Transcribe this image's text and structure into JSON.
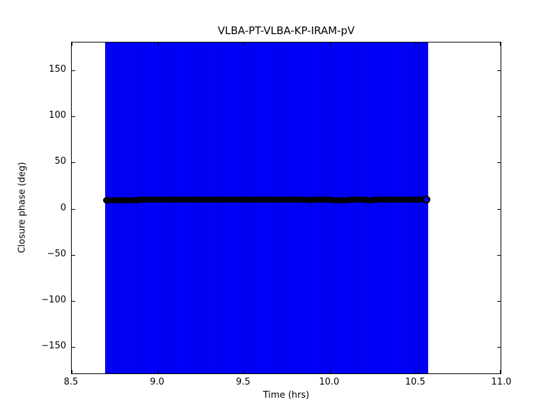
{
  "chart_data": {
    "type": "scatter",
    "title": "VLBA-PT-VLBA-KP-IRAM-pV",
    "xlabel": "Time (hrs)",
    "ylabel": "Closure phase (deg)",
    "xlim": [
      8.5,
      11.0
    ],
    "ylim": [
      -180,
      180
    ],
    "xticks": [
      8.5,
      9.0,
      9.5,
      10.0,
      10.5,
      11.0
    ],
    "xtick_labels": [
      "8.5",
      "9.0",
      "9.5",
      "10.0",
      "10.5",
      "11.0"
    ],
    "yticks": [
      -150,
      -100,
      -50,
      0,
      50,
      100,
      150
    ],
    "ytick_labels": [
      "−150",
      "−100",
      "−50",
      "0",
      "50",
      "100",
      "150"
    ],
    "grid": false,
    "legend": false,
    "colors": {
      "marker": "#000000",
      "errorbar": "#0000ff",
      "axes": "#000000",
      "background": "#ffffff"
    },
    "error_band": {
      "x_start": 8.695,
      "x_end": 10.572,
      "y_min": -180,
      "y_max": 180,
      "description": "vertical error bars at every sample spanning the full y-range"
    },
    "series": [
      {
        "name": "closure phase",
        "marker": "circle",
        "x": [
          8.7,
          8.72,
          8.74,
          8.76,
          8.78,
          8.8,
          8.82,
          8.84,
          8.86,
          8.88,
          8.9,
          8.92,
          8.94,
          8.96,
          8.98,
          9.0,
          9.02,
          9.04,
          9.06,
          9.08,
          9.1,
          9.12,
          9.14,
          9.16,
          9.18,
          9.2,
          9.22,
          9.24,
          9.26,
          9.28,
          9.3,
          9.32,
          9.34,
          9.36,
          9.38,
          9.4,
          9.42,
          9.44,
          9.46,
          9.48,
          9.5,
          9.52,
          9.54,
          9.56,
          9.58,
          9.6,
          9.62,
          9.64,
          9.66,
          9.68,
          9.7,
          9.72,
          9.74,
          9.76,
          9.78,
          9.8,
          9.82,
          9.84,
          9.86,
          9.88,
          9.9,
          9.92,
          9.94,
          9.96,
          9.98,
          10.0,
          10.02,
          10.04,
          10.06,
          10.08,
          10.1,
          10.12,
          10.14,
          10.16,
          10.18,
          10.2,
          10.22,
          10.24,
          10.26,
          10.28,
          10.3,
          10.32,
          10.34,
          10.36,
          10.38,
          10.4,
          10.42,
          10.44,
          10.46,
          10.48,
          10.5,
          10.52,
          10.54,
          10.56
        ],
        "y": [
          8.9,
          9.0,
          9.0,
          9.1,
          9.2,
          9.2,
          9.3,
          9.3,
          9.4,
          9.4,
          9.5,
          9.5,
          9.6,
          9.6,
          9.7,
          9.7,
          9.7,
          9.8,
          9.8,
          9.8,
          9.9,
          9.9,
          9.8,
          9.8,
          9.9,
          9.9,
          10.0,
          9.9,
          9.9,
          9.8,
          9.8,
          9.7,
          9.7,
          9.8,
          9.8,
          9.9,
          9.9,
          9.8,
          9.8,
          9.7,
          9.7,
          9.6,
          9.7,
          9.7,
          9.8,
          9.8,
          9.7,
          9.7,
          9.6,
          9.6,
          9.5,
          9.6,
          9.6,
          9.7,
          9.7,
          9.6,
          9.6,
          9.5,
          9.5,
          9.4,
          9.5,
          9.5,
          9.6,
          9.6,
          9.5,
          9.5,
          9.4,
          9.4,
          9.3,
          9.4,
          9.4,
          9.5,
          9.5,
          9.6,
          9.5,
          9.5,
          9.4,
          9.4,
          9.5,
          9.5,
          9.6,
          9.6,
          9.5,
          9.5,
          9.6,
          9.6,
          9.7,
          9.6,
          9.6,
          9.5,
          9.5,
          9.5,
          9.6,
          9.6
        ]
      }
    ]
  }
}
